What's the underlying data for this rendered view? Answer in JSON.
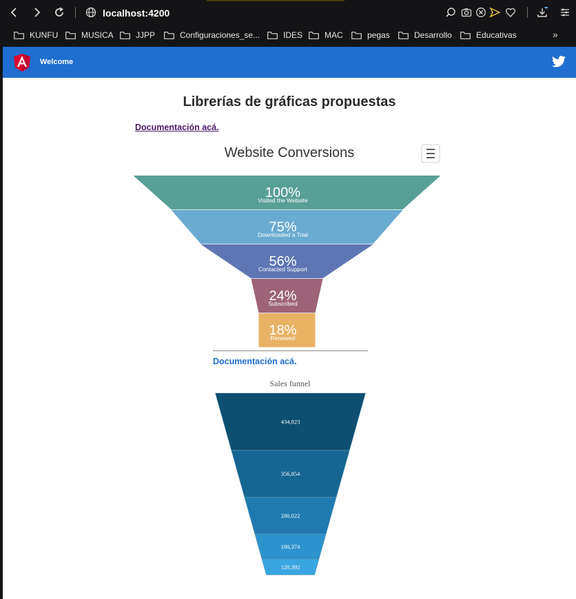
{
  "browser": {
    "url": "localhost:4200",
    "bookmarks": [
      "KUNFU",
      "MUSICA",
      "JJPP",
      "Configuraciones_se...",
      "IDES",
      "MAC",
      "pegas",
      "Desarrollo",
      "Educativas"
    ],
    "more": "»"
  },
  "header": {
    "welcome": "Welcome",
    "logo_icon": "angular-logo-icon",
    "social_icon": "twitter-icon"
  },
  "page": {
    "title": "Librerías de gráficas propuestas",
    "doc_link_1": "Documentación acá.",
    "doc_link_2": "Documentación acá."
  },
  "chart_data": [
    {
      "type": "funnel",
      "title": "Website Conversions",
      "menu_icon": "hamburger-menu-icon",
      "categories": [
        "Visited the Website",
        "Downloaded a Trial",
        "Contacted Support",
        "Subscribed",
        "Renewed"
      ],
      "values": [
        "100%",
        "75%",
        "56%",
        "24%",
        "18%"
      ],
      "colors": [
        "#589f96",
        "#6aabd2",
        "#5f76b4",
        "#9e6378",
        "#e8b265"
      ]
    },
    {
      "type": "funnel",
      "title": "Sales funnel",
      "values": [
        434823,
        356854,
        280022,
        190374,
        120392
      ],
      "labels": [
        "434,823",
        "356,854",
        "280,022",
        "190,374",
        "120,392"
      ],
      "colors": [
        "#0e4f71",
        "#176592",
        "#207aaf",
        "#2c93cc",
        "#3aa6df"
      ]
    }
  ]
}
